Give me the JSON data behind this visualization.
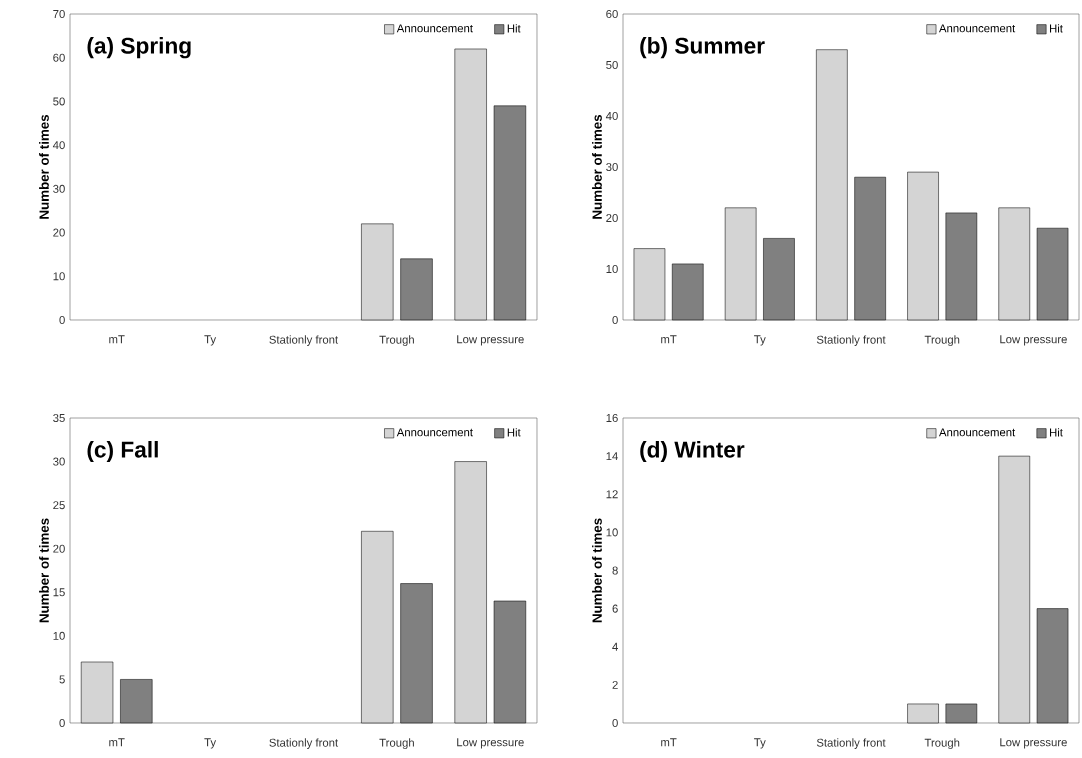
{
  "chart_data": [
    {
      "type": "bar",
      "title": "(a) Spring",
      "ylabel": "Number of times",
      "categories": [
        "mT",
        "Ty",
        "Stationly front",
        "Trough",
        "Low pressure"
      ],
      "series": [
        {
          "name": "Announcement",
          "color": "#d4d4d4",
          "values": [
            0,
            0,
            0,
            22,
            62
          ]
        },
        {
          "name": "Hit",
          "color": "#808080",
          "values": [
            0,
            0,
            0,
            14,
            49
          ]
        }
      ],
      "ylim": [
        0,
        70
      ],
      "yticks": [
        0,
        10,
        20,
        30,
        40,
        50,
        60,
        70
      ],
      "legend": "top right"
    },
    {
      "type": "bar",
      "title": "(b) Summer",
      "ylabel": "Number of times",
      "categories": [
        "mT",
        "Ty",
        "Stationly front",
        "Trough",
        "Low pressure"
      ],
      "series": [
        {
          "name": "Announcement",
          "color": "#d4d4d4",
          "values": [
            14,
            22,
            53,
            29,
            22
          ]
        },
        {
          "name": "Hit",
          "color": "#808080",
          "values": [
            11,
            16,
            28,
            21,
            18
          ]
        }
      ],
      "ylim": [
        0,
        60
      ],
      "yticks": [
        0,
        10,
        20,
        30,
        40,
        50,
        60
      ],
      "legend": "top right"
    },
    {
      "type": "bar",
      "title": "(c)  Fall",
      "ylabel": "Number of times",
      "categories": [
        "mT",
        "Ty",
        "Stationly front",
        "Trough",
        "Low pressure"
      ],
      "series": [
        {
          "name": "Announcement",
          "color": "#d4d4d4",
          "values": [
            7,
            0,
            0,
            22,
            30
          ]
        },
        {
          "name": "Hit",
          "color": "#808080",
          "values": [
            5,
            0,
            0,
            16,
            14
          ]
        }
      ],
      "ylim": [
        0,
        35
      ],
      "yticks": [
        0,
        5,
        10,
        15,
        20,
        25,
        30,
        35
      ],
      "legend": "top right"
    },
    {
      "type": "bar",
      "title": "(d) Winter",
      "ylabel": "Number of times",
      "categories": [
        "mT",
        "Ty",
        "Stationly front",
        "Trough",
        "Low pressure"
      ],
      "series": [
        {
          "name": "Announcement",
          "color": "#d4d4d4",
          "values": [
            0,
            0,
            0,
            1,
            14
          ]
        },
        {
          "name": "Hit",
          "color": "#808080",
          "values": [
            0,
            0,
            0,
            1,
            6
          ]
        }
      ],
      "ylim": [
        0,
        16
      ],
      "yticks": [
        0,
        2,
        4,
        6,
        8,
        10,
        12,
        14,
        16
      ],
      "legend": "top right"
    }
  ]
}
